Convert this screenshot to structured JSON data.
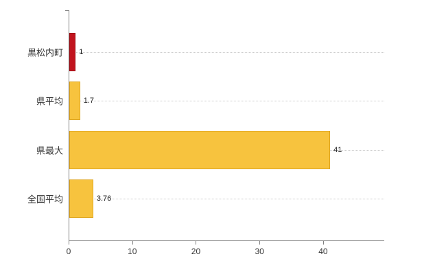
{
  "chart_data": {
    "type": "bar",
    "orientation": "horizontal",
    "title": "",
    "categories": [
      "黒松内町",
      "県平均",
      "県最大",
      "全国平均"
    ],
    "values": [
      1,
      1.7,
      41,
      3.76
    ],
    "value_labels": [
      "1",
      "1.7",
      "41",
      "3.76"
    ],
    "bar_colors": [
      "#c1141e",
      "#f7c33e",
      "#f7c33e",
      "#f7c33e"
    ],
    "bar_border_colors": [
      "#9e0d14",
      "#dfa51c",
      "#dfa51c",
      "#dfa51c"
    ],
    "x_ticks": [
      0,
      10,
      20,
      30,
      40
    ],
    "x_tick_labels": [
      "0",
      "10",
      "20",
      "30",
      "40"
    ],
    "xlim": [
      0,
      49.5
    ],
    "grid": "dotted-horizontal-per-category",
    "legend": "none",
    "axis_color": "#7f7f7f",
    "grid_color": "#c9c9c9",
    "text_color": "#333333"
  }
}
